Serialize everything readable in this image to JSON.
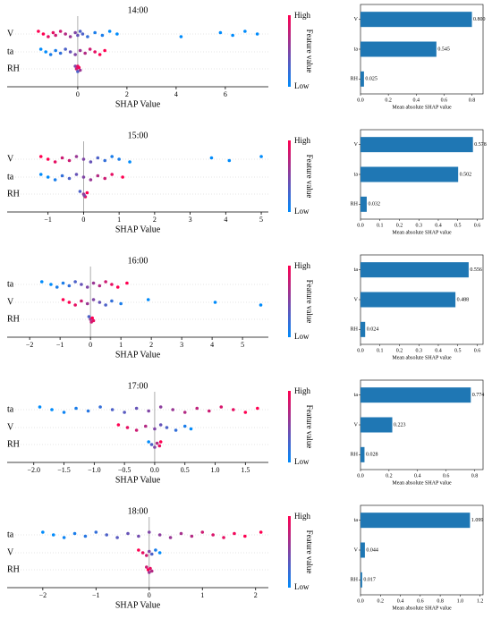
{
  "chart_data": [
    {
      "type": "beeswarm",
      "title": "14:00",
      "xlabel": "SHAP Value",
      "xlim": [
        -2.87,
        7.75
      ],
      "xticks": [
        0,
        2,
        4,
        6
      ],
      "colorbar": {
        "label": "Feature value",
        "high": "High",
        "low": "Low",
        "low_color": "#008bfb",
        "high_color": "#ff0051"
      },
      "series": [
        {
          "name": "V",
          "values": [
            -1.6,
            -1.4,
            -1.2,
            -1.0,
            -0.9,
            -0.7,
            -0.5,
            -0.3,
            -0.1,
            0.0,
            0.1,
            0.2,
            0.4,
            0.7,
            1.0,
            1.3,
            1.6,
            4.2,
            5.8,
            6.3,
            6.8,
            7.3
          ],
          "feature_values": [
            1,
            1,
            0.9,
            0.9,
            0.8,
            0.8,
            0.7,
            0.6,
            0.5,
            0.4,
            0.3,
            0.3,
            0.2,
            0.1,
            0.1,
            0,
            0,
            0,
            0,
            0,
            0,
            0
          ]
        },
        {
          "name": "ta",
          "values": [
            -1.5,
            -1.3,
            -1.1,
            -0.9,
            -0.7,
            -0.5,
            -0.3,
            -0.1,
            0.1,
            0.3,
            0.5,
            0.7,
            0.9,
            1.1
          ],
          "feature_values": [
            0,
            0,
            0.1,
            0.1,
            0.2,
            0.3,
            0.4,
            0.5,
            0.6,
            0.7,
            0.8,
            0.9,
            1,
            1
          ]
        },
        {
          "name": "RH",
          "values": [
            -0.1,
            -0.05,
            0,
            0.05,
            0.1,
            0
          ],
          "feature_values": [
            0.5,
            0.8,
            0.3,
            1,
            0.6,
            0.9
          ]
        }
      ]
    },
    {
      "type": "barh",
      "categories": [
        "V",
        "ta",
        "RH"
      ],
      "values": [
        0.8,
        0.545,
        0.025
      ],
      "value_labels": [
        "0.800",
        "0.545",
        "0.025"
      ],
      "color": "#1f77b4",
      "xlabel": "Mean absolute SHAP value",
      "xlim": [
        0,
        0.88
      ],
      "xticks": [
        {
          "value": 0,
          "label": "0.0"
        },
        0.2,
        0.4,
        0.6,
        0.8
      ]
    },
    {
      "type": "beeswarm",
      "title": "15:00",
      "xlabel": "SHAP Value",
      "xlim": [
        -2.15,
        5.2
      ],
      "xticks": [
        {
          "value": -1,
          "label": "−1"
        },
        0,
        1,
        2,
        3,
        4,
        5
      ],
      "colorbar": {
        "label": "Feature value",
        "high": "High",
        "low": "Low",
        "low_color": "#008bfb",
        "high_color": "#ff0051"
      },
      "series": [
        {
          "name": "V",
          "values": [
            -1.2,
            -1.0,
            -0.8,
            -0.6,
            -0.4,
            -0.2,
            0.0,
            0.2,
            0.4,
            0.6,
            0.8,
            1.0,
            1.3,
            3.6,
            4.1,
            5.0
          ],
          "feature_values": [
            1,
            1,
            0.9,
            0.8,
            0.8,
            0.6,
            0.5,
            0.4,
            0.3,
            0.2,
            0.1,
            0.1,
            0,
            0,
            0,
            0
          ]
        },
        {
          "name": "ta",
          "values": [
            -1.2,
            -1.0,
            -0.8,
            -0.6,
            -0.4,
            -0.2,
            0,
            0.2,
            0.4,
            0.6,
            0.8,
            1.1
          ],
          "feature_values": [
            0,
            0,
            0.1,
            0.2,
            0.3,
            0.4,
            0.5,
            0.6,
            0.7,
            0.8,
            0.9,
            1
          ]
        },
        {
          "name": "RH",
          "values": [
            -0.1,
            0,
            0.05,
            0.1,
            0.02
          ],
          "feature_values": [
            0.3,
            0.6,
            0.9,
            1,
            0.5
          ]
        }
      ]
    },
    {
      "type": "barh",
      "categories": [
        "V",
        "ta",
        "RH"
      ],
      "values": [
        0.578,
        0.502,
        0.032
      ],
      "value_labels": [
        "0.578",
        "0.502",
        "0.032"
      ],
      "color": "#1f77b4",
      "xlabel": "Mean absolute SHAP value",
      "xlim": [
        0,
        0.63
      ],
      "xticks": [
        {
          "value": 0,
          "label": "0.0"
        },
        0.1,
        0.2,
        0.3,
        0.4,
        0.5,
        0.6
      ]
    },
    {
      "type": "beeswarm",
      "title": "16:00",
      "xlabel": "SHAP Value",
      "xlim": [
        -2.74,
        5.85
      ],
      "xticks": [
        {
          "value": -2,
          "label": "−2"
        },
        {
          "value": -1,
          "label": "−1"
        },
        0,
        1,
        2,
        3,
        4,
        5
      ],
      "colorbar": {
        "label": "Feature value",
        "high": "High",
        "low": "Low",
        "low_color": "#008bfb",
        "high_color": "#ff0051"
      },
      "series": [
        {
          "name": "ta",
          "values": [
            -1.6,
            -1.3,
            -1.1,
            -0.9,
            -0.7,
            -0.5,
            -0.3,
            -0.1,
            0.1,
            0.3,
            0.5,
            0.7,
            0.9,
            1.2
          ],
          "feature_values": [
            0,
            0,
            0.1,
            0.1,
            0.2,
            0.3,
            0.4,
            0.5,
            0.6,
            0.7,
            0.8,
            0.9,
            1,
            1
          ]
        },
        {
          "name": "V",
          "values": [
            -0.9,
            -0.7,
            -0.5,
            -0.3,
            -0.1,
            0.1,
            0.3,
            0.5,
            0.7,
            1.0,
            1.9,
            4.1,
            5.6
          ],
          "feature_values": [
            1,
            1,
            0.9,
            0.8,
            0.6,
            0.5,
            0.4,
            0.3,
            0.2,
            0.1,
            0,
            0,
            0
          ]
        },
        {
          "name": "RH",
          "values": [
            -0.05,
            0,
            0.03,
            0.06,
            0.1
          ],
          "feature_values": [
            0.3,
            0.6,
            0.8,
            1,
            0.9
          ]
        }
      ]
    },
    {
      "type": "barh",
      "categories": [
        "ta",
        "V",
        "RH"
      ],
      "values": [
        0.556,
        0.488,
        0.024
      ],
      "value_labels": [
        "0.556",
        "0.488",
        "0.024"
      ],
      "color": "#1f77b4",
      "xlabel": "Mean absolute SHAP value",
      "xlim": [
        0,
        0.63
      ],
      "xticks": [
        {
          "value": 0,
          "label": "0.0"
        },
        0.1,
        0.2,
        0.3,
        0.4,
        0.5,
        0.6
      ]
    },
    {
      "type": "beeswarm",
      "title": "17:00",
      "xlabel": "SHAP Value",
      "xlim": [
        -2.44,
        1.88
      ],
      "xticks": [
        {
          "value": -2,
          "label": "−2.0"
        },
        {
          "value": -1.5,
          "label": "−1.5"
        },
        {
          "value": -1,
          "label": "−1.0"
        },
        {
          "value": -0.5,
          "label": "−0.5"
        },
        {
          "value": 0,
          "label": "0.0"
        },
        0.5,
        {
          "value": 1,
          "label": "1.0"
        },
        1.5
      ],
      "colorbar": {
        "label": "Feature value",
        "high": "High",
        "low": "Low",
        "low_color": "#008bfb",
        "high_color": "#ff0051"
      },
      "series": [
        {
          "name": "ta",
          "values": [
            -1.9,
            -1.7,
            -1.5,
            -1.3,
            -1.1,
            -0.9,
            -0.7,
            -0.5,
            -0.3,
            -0.1,
            0.1,
            0.3,
            0.5,
            0.7,
            0.9,
            1.1,
            1.3,
            1.5,
            1.7
          ],
          "feature_values": [
            0,
            0,
            0.05,
            0.1,
            0.15,
            0.2,
            0.3,
            0.35,
            0.4,
            0.5,
            0.55,
            0.6,
            0.7,
            0.75,
            0.8,
            0.85,
            0.9,
            1,
            1
          ]
        },
        {
          "name": "V",
          "values": [
            -0.6,
            -0.45,
            -0.3,
            -0.15,
            0,
            0.1,
            0.2,
            0.35,
            0.5,
            0.6
          ],
          "feature_values": [
            1,
            0.9,
            0.8,
            0.7,
            0.5,
            0.4,
            0.3,
            0.2,
            0.1,
            0
          ]
        },
        {
          "name": "RH",
          "values": [
            -0.1,
            -0.05,
            0,
            0.04,
            0.08,
            0.1
          ],
          "feature_values": [
            0,
            0.3,
            0.5,
            0.7,
            0.9,
            1
          ]
        }
      ]
    },
    {
      "type": "barh",
      "categories": [
        "ta",
        "V",
        "RH"
      ],
      "values": [
        0.774,
        0.223,
        0.028
      ],
      "value_labels": [
        "0.774",
        "0.223",
        "0.028"
      ],
      "color": "#1f77b4",
      "xlabel": "Mean absolute SHAP value",
      "xlim": [
        0,
        0.86
      ],
      "xticks": [
        {
          "value": 0,
          "label": "0.0"
        },
        0.2,
        0.4,
        0.6,
        0.8
      ]
    },
    {
      "type": "beeswarm",
      "title": "18:00",
      "xlabel": "SHAP Value",
      "xlim": [
        -2.67,
        2.24
      ],
      "xticks": [
        {
          "value": -2,
          "label": "−2"
        },
        {
          "value": -1,
          "label": "−1"
        },
        0,
        1,
        2
      ],
      "colorbar": {
        "label": "Feature value",
        "high": "High",
        "low": "Low",
        "low_color": "#008bfb",
        "high_color": "#ff0051"
      },
      "series": [
        {
          "name": "ta",
          "values": [
            -2.0,
            -1.8,
            -1.6,
            -1.4,
            -1.2,
            -1.0,
            -0.8,
            -0.6,
            -0.4,
            -0.2,
            0,
            0.2,
            0.4,
            0.6,
            0.8,
            1.0,
            1.2,
            1.4,
            1.6,
            1.8,
            2.1
          ],
          "feature_values": [
            0,
            0,
            0.05,
            0.1,
            0.15,
            0.2,
            0.3,
            0.35,
            0.4,
            0.45,
            0.5,
            0.55,
            0.6,
            0.65,
            0.7,
            0.8,
            0.85,
            0.9,
            0.95,
            1,
            1
          ]
        },
        {
          "name": "V",
          "values": [
            -0.2,
            -0.12,
            -0.05,
            0,
            0.05,
            0.12,
            0.2
          ],
          "feature_values": [
            1,
            0.9,
            0.8,
            0.5,
            0.3,
            0.1,
            0
          ]
        },
        {
          "name": "RH",
          "values": [
            -0.05,
            -0.02,
            0,
            0.02,
            0.05
          ],
          "feature_values": [
            0.8,
            1,
            0.6,
            0.9,
            0.7
          ]
        }
      ]
    },
    {
      "type": "barh",
      "categories": [
        "ta",
        "V",
        "RH"
      ],
      "values": [
        1.099,
        0.044,
        0.017
      ],
      "value_labels": [
        "1.099",
        "0.044",
        "0.017"
      ],
      "color": "#1f77b4",
      "xlabel": "Mean absolute SHAP value",
      "xlim": [
        0,
        1.23
      ],
      "xticks": [
        {
          "value": 0,
          "label": "0.0"
        },
        0.2,
        0.4,
        0.6,
        0.8,
        {
          "value": 1,
          "label": "1.0"
        },
        1.2
      ]
    }
  ]
}
